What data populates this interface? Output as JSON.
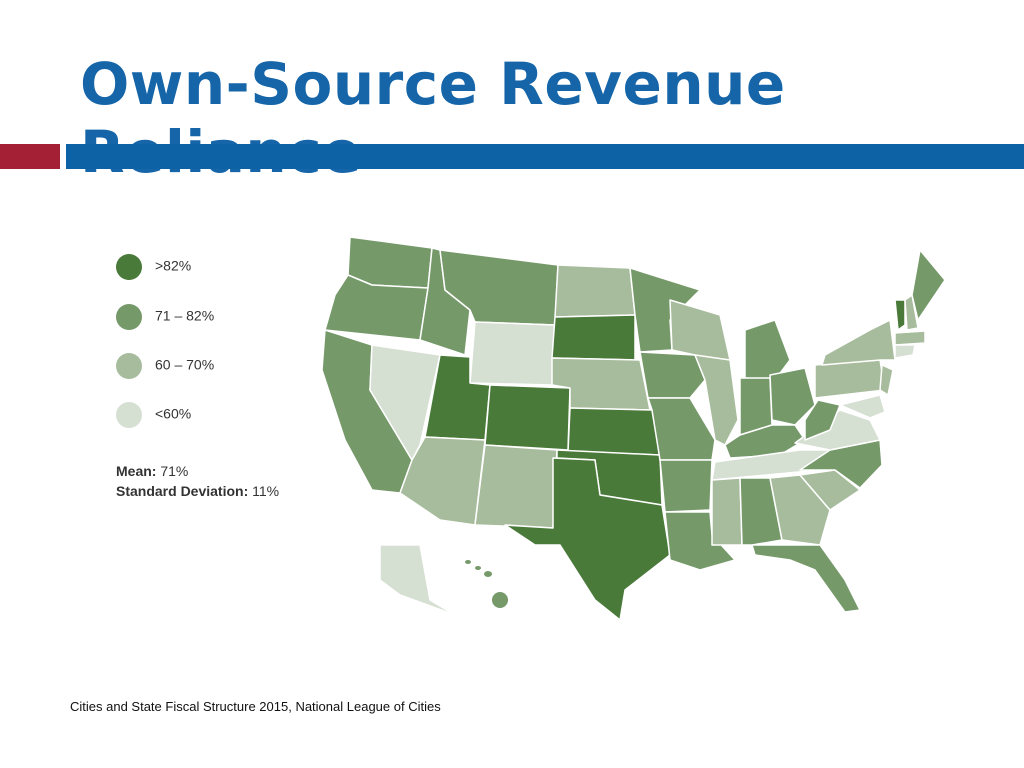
{
  "title": "Own-Source Revenue Reliance",
  "legend": {
    "items": [
      {
        "label": ">82%",
        "color": "#4a7a3a"
      },
      {
        "label": "71 – 82%",
        "color": "#76996a"
      },
      {
        "label": "60 – 70%",
        "color": "#a7bc9c"
      },
      {
        "label": "<60%",
        "color": "#d5dfd2"
      }
    ]
  },
  "stats": {
    "mean_label": "Mean:",
    "mean_value": "71%",
    "sd_label": "Standard Deviation:",
    "sd_value": "11%"
  },
  "source": "Cities and State Fiscal Structure 2015, National League of Cities"
}
